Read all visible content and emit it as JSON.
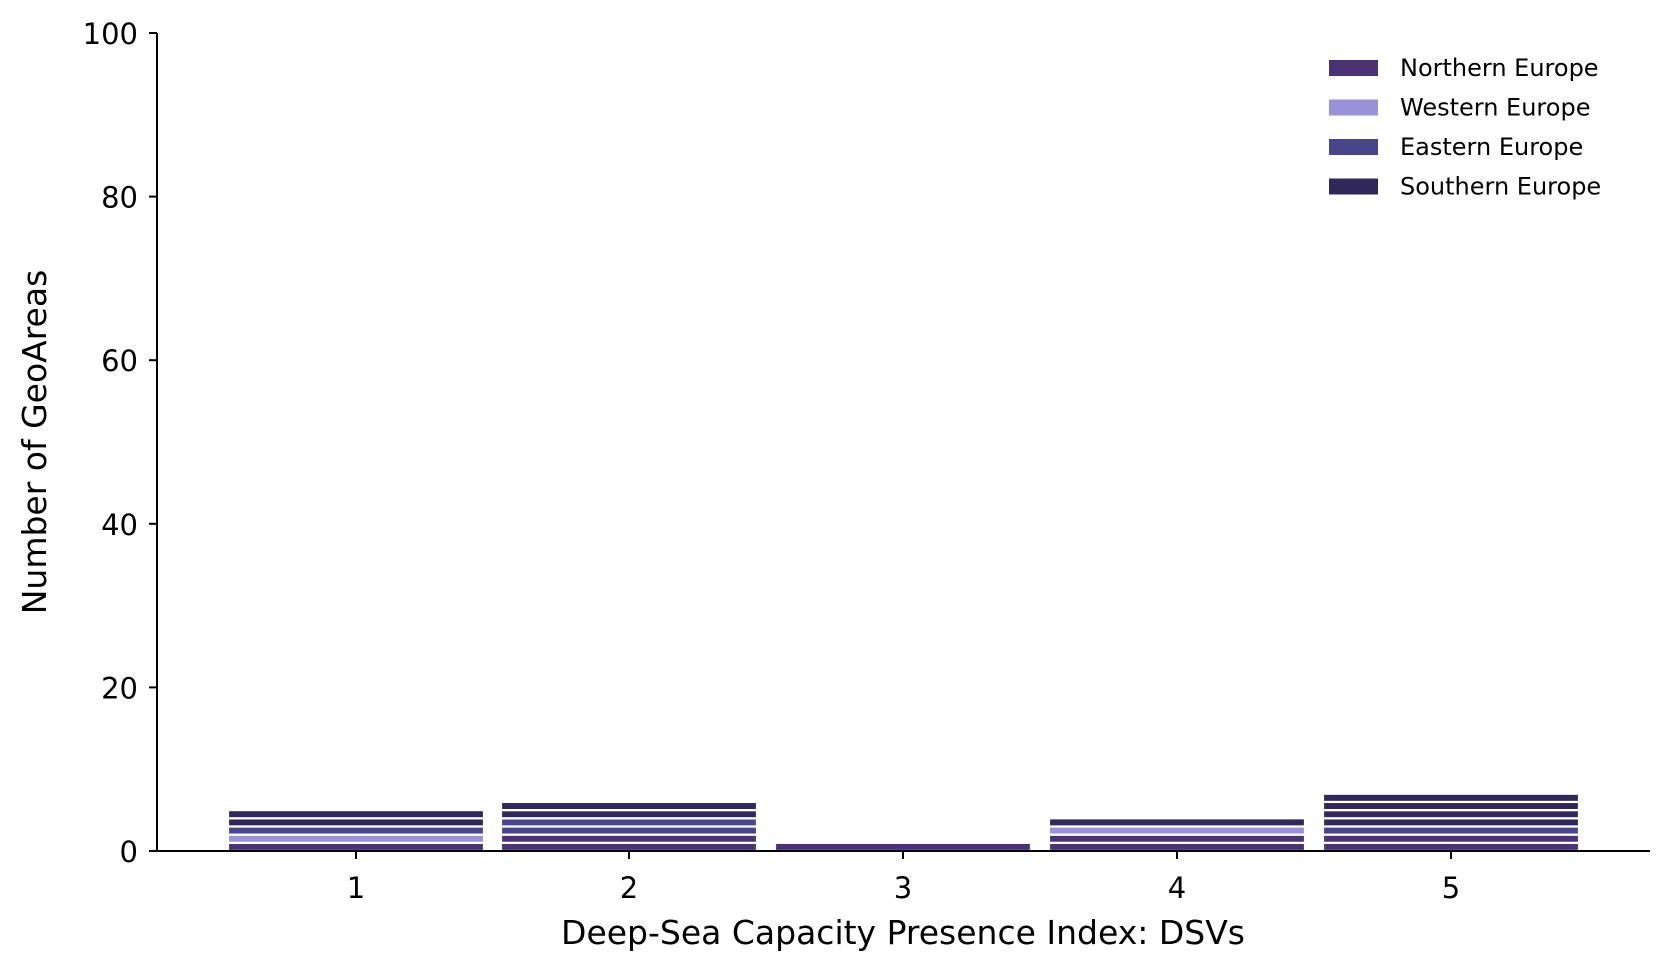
{
  "chart_data": {
    "type": "bar",
    "stacked": true,
    "categories": [
      "1",
      "2",
      "3",
      "4",
      "5"
    ],
    "series": [
      {
        "name": "Northern Europe",
        "color": "#4b3275",
        "values": [
          1,
          2,
          1,
          2,
          2
        ]
      },
      {
        "name": "Western Europe",
        "color": "#9a92d8",
        "values": [
          1,
          0,
          0,
          1,
          0
        ]
      },
      {
        "name": "Eastern Europe",
        "color": "#47468c",
        "values": [
          1,
          2,
          0,
          0,
          1
        ]
      },
      {
        "name": "Southern Europe",
        "color": "#302858",
        "values": [
          2,
          2,
          0,
          1,
          4
        ]
      }
    ],
    "xlabel": "Deep-Sea Capacity Presence Index: DSVs",
    "ylabel": "Number of GeoAreas",
    "ylim": [
      0,
      100
    ],
    "yticks": [
      0,
      20,
      40,
      60,
      80,
      100
    ],
    "grid": false,
    "legend_position": "top-right"
  }
}
